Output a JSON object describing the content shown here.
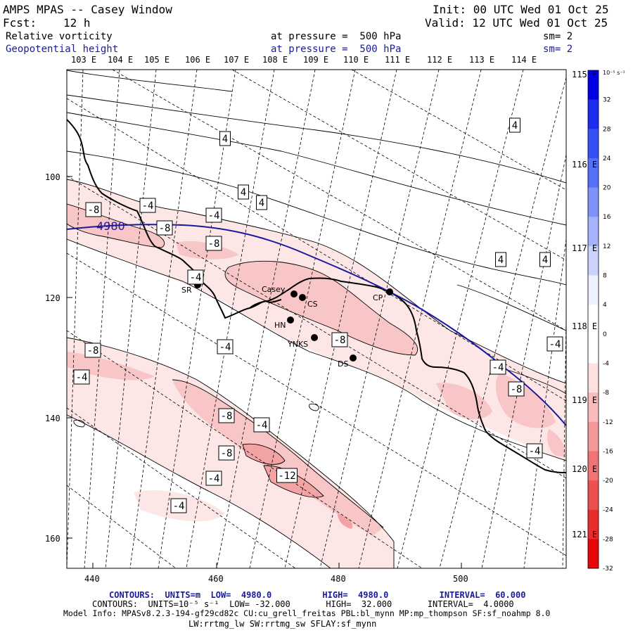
{
  "header": {
    "title": "AMPS MPAS -- Casey Window",
    "init": "Init: 00 UTC Wed 01 Oct 25",
    "fcst_label": "Fcst:",
    "fcst_value": "12 h",
    "valid": "Valid: 12 UTC Wed 01 Oct 25",
    "field1_name": "Relative vorticity",
    "field1_level": "at pressure =  500 hPa",
    "field1_sm": "sm= 2",
    "field2_name": "Geopotential height",
    "field2_level": "at pressure =  500 hPa",
    "field2_sm": "sm= 2"
  },
  "colors": {
    "height_contour": "#1a1aa0",
    "vort_light": "#fde6e6",
    "vort_mid": "#f8c6c6",
    "vort_dark": "#f2a4a4"
  },
  "top_lon_labels": [
    "103 E",
    "104 E",
    "105 E",
    "106 E",
    "107 E",
    "108 E",
    "109 E",
    "110 E",
    "111 E",
    "112 E",
    "113 E",
    "114 E"
  ],
  "right_lon_labels": [
    "115 E",
    "116 E",
    "117 E",
    "118 E",
    "119 E",
    "120 E",
    "121 E"
  ],
  "x_ticks": [
    "440",
    "460",
    "480",
    "500"
  ],
  "y_ticks": [
    "100",
    "120",
    "140",
    "160"
  ],
  "contour_labels": [
    "4",
    "4",
    "4",
    "4",
    "4",
    "4",
    "-4",
    "-4",
    "-8",
    "-8",
    "-8",
    "-4",
    "-8",
    "-8",
    "-4",
    "-4",
    "-8",
    "-4",
    "-8",
    "-4",
    "-8",
    "-12",
    "-4",
    "-4",
    "-4",
    "-4",
    "4980"
  ],
  "stations": [
    {
      "name": "SR"
    },
    {
      "name": "Casey"
    },
    {
      "name": "CS"
    },
    {
      "name": "CP"
    },
    {
      "name": "HN"
    },
    {
      "name": "YNKS"
    },
    {
      "name": "DS"
    }
  ],
  "colorbar": {
    "unit": "10⁻⁵ s⁻¹",
    "labels": [
      "32",
      "28",
      "24",
      "20",
      "16",
      "12",
      "8",
      "4",
      "0",
      "-4",
      "-8",
      "-12",
      "-16",
      "-20",
      "-24",
      "-28",
      "-32"
    ]
  },
  "footer": {
    "line1": "CONTOURS:  UNITS=m  LOW=  4980.0          HIGH=  4980.0          INTERVAL=  60.000",
    "line2": "CONTOURS:  UNITS=10⁻⁵ s⁻¹  LOW= -32.000       HIGH=  32.000       INTERVAL=  4.0000",
    "line3": "Model Info: MPASv8.2.3-194-gf29cd82c CU:cu_grell_freitas PBL:bl_mynn MP:mp_thompson SF:sf_noahmp 8.0",
    "line4": "LW:rrtmg_lw SW:rrtmg_sw SFLAY:sf_mynn"
  }
}
